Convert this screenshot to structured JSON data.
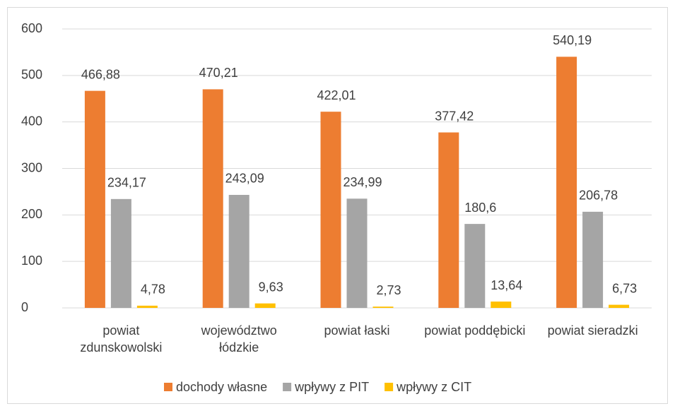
{
  "chart_data": {
    "type": "bar",
    "categories": [
      "powiat zdunskowolski",
      "województwo łódzkie",
      "powiat łaski",
      "powiat poddębicki",
      "powiat sieradzki"
    ],
    "series": [
      {
        "name": "dochody własne",
        "color": "#ed7d31",
        "values": [
          466.88,
          470.21,
          422.01,
          377.42,
          540.19
        ],
        "value_labels": [
          "466,88",
          "470,21",
          "422,01",
          "377,42",
          "540,19"
        ]
      },
      {
        "name": "wpływy z PIT",
        "color": "#a5a5a5",
        "values": [
          234.17,
          243.09,
          234.99,
          180.6,
          206.78
        ],
        "value_labels": [
          "234,17",
          "243,09",
          "234,99",
          "180,6",
          "206,78"
        ]
      },
      {
        "name": "wpływy z CIT",
        "color": "#ffc000",
        "values": [
          4.78,
          9.63,
          2.73,
          13.64,
          6.73
        ],
        "value_labels": [
          "4,78",
          "9,63",
          "2,73",
          "13,64",
          "6,73"
        ]
      }
    ],
    "ylim": [
      0,
      600
    ],
    "yticks": [
      0,
      100,
      200,
      300,
      400,
      500,
      600
    ],
    "grid": true,
    "legend": "bottom"
  }
}
